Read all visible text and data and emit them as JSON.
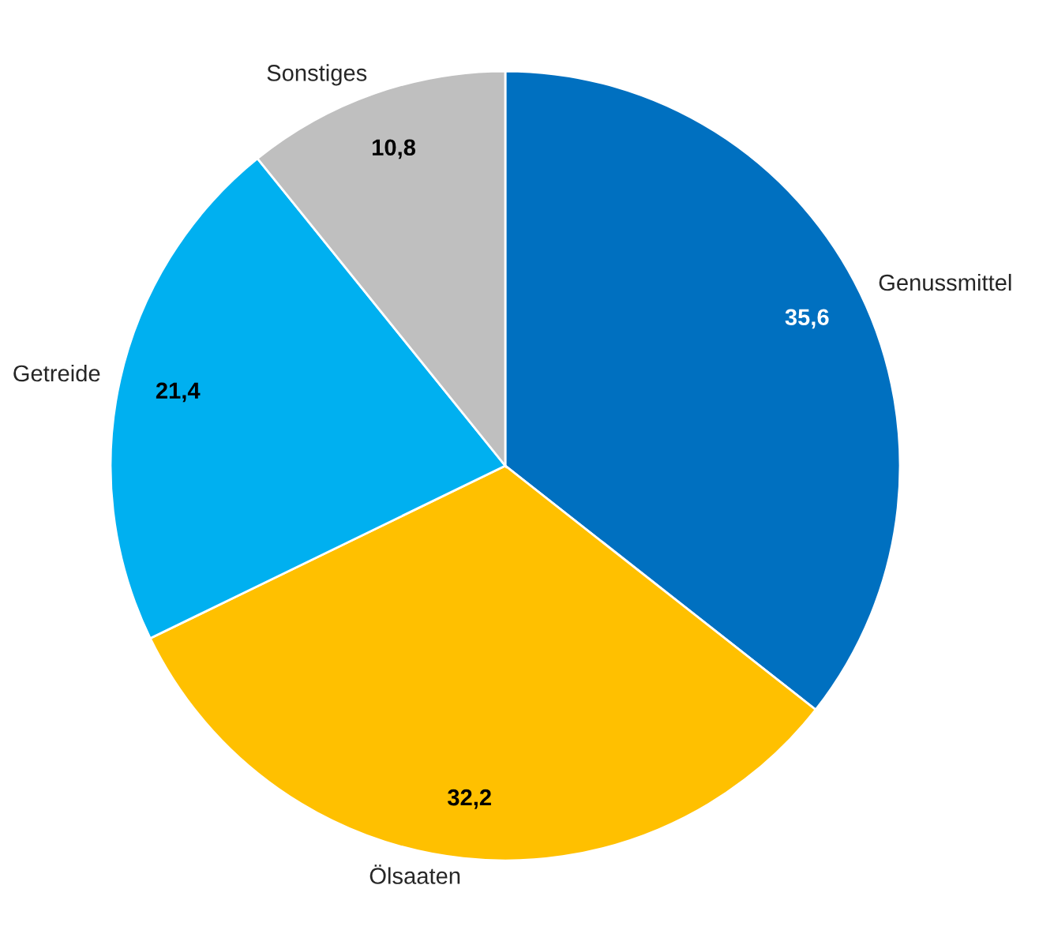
{
  "chart_data": {
    "type": "pie",
    "categories": [
      "Genussmittel",
      "Ölsaaten",
      "Getreide",
      "Sonstiges"
    ],
    "values": [
      35.6,
      32.2,
      21.4,
      10.8
    ],
    "colors": [
      "#0070c0",
      "#ffc000",
      "#00b0f0",
      "#bfbfbf"
    ],
    "value_labels": [
      "35,6",
      "32,2",
      "21,4",
      "10,8"
    ]
  }
}
